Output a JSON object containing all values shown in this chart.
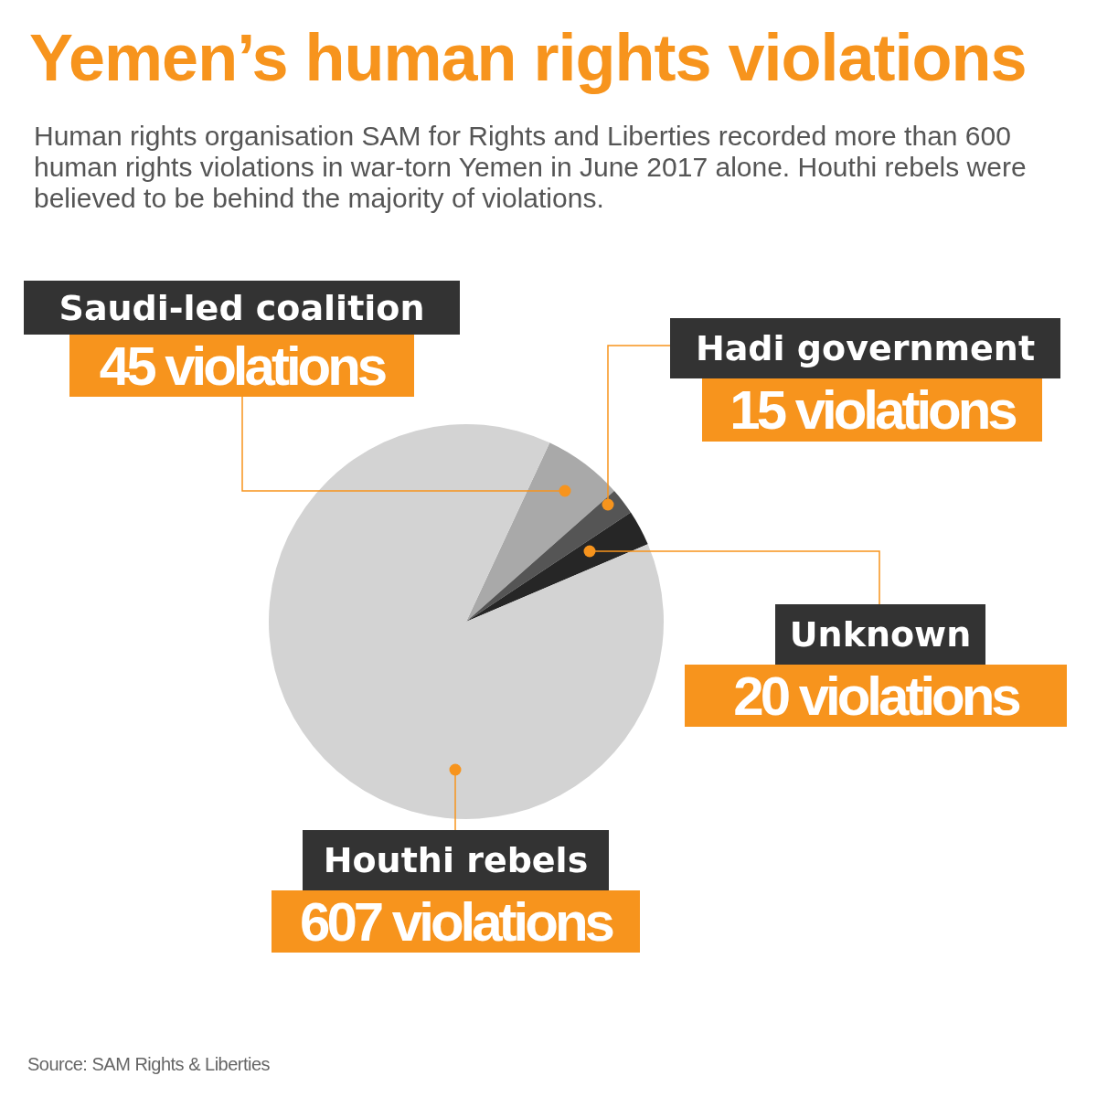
{
  "chart_data": {
    "type": "pie",
    "title": "Yemen’s human rights violations",
    "subtitle": "Human rights organisation SAM for Rights and Liberties recorded more than 600 human rights violations in war-torn Yemen in June 2017 alone. Houthi rebels were believed to be behind the majority of violations.",
    "categories": [
      "Saudi-led coalition",
      "Hadi government",
      "Unknown",
      "Houthi rebels"
    ],
    "values": [
      45,
      15,
      20,
      607
    ],
    "value_labels": [
      "45 violations",
      "15 violations",
      "20 violations",
      "607 violations"
    ],
    "colors": [
      "#a9a9a9",
      "#555555",
      "#262626",
      "#d3d3d3"
    ],
    "annotations": [
      "Source: SAM Rights & Liberties"
    ]
  }
}
